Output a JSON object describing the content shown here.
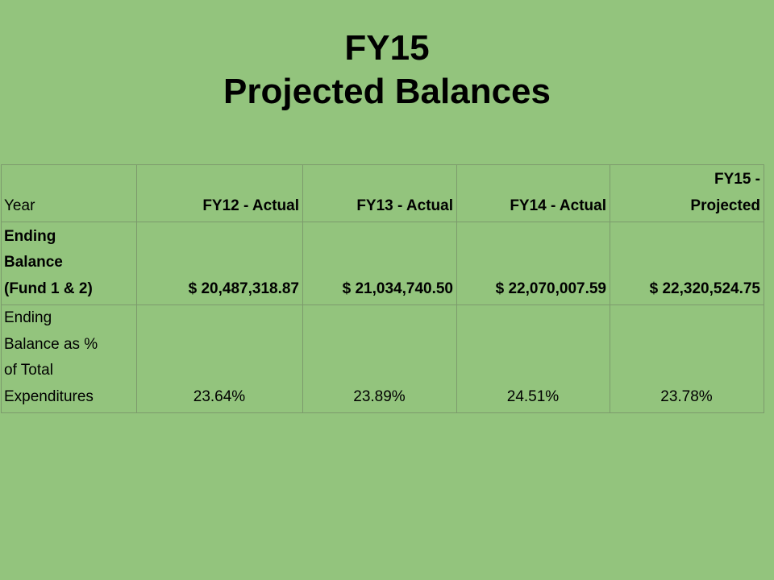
{
  "title": {
    "line1": "FY15",
    "line2": "Projected Balances"
  },
  "table": {
    "header": {
      "label": "Year",
      "columns": [
        "FY12 - Actual",
        "FY13 - Actual",
        "FY14 - Actual",
        "FY15 -\nProjected"
      ]
    },
    "rows": [
      {
        "label": "Ending\nBalance\n(Fund 1 & 2)",
        "values": [
          "$ 20,487,318.87",
          "$ 21,034,740.50",
          "$ 22,070,007.59",
          "$ 22,320,524.75"
        ]
      },
      {
        "label": "Ending\nBalance as %\nof Total\nExpenditures",
        "values": [
          "23.64%",
          "23.89%",
          "24.51%",
          "23.78%"
        ]
      }
    ]
  }
}
